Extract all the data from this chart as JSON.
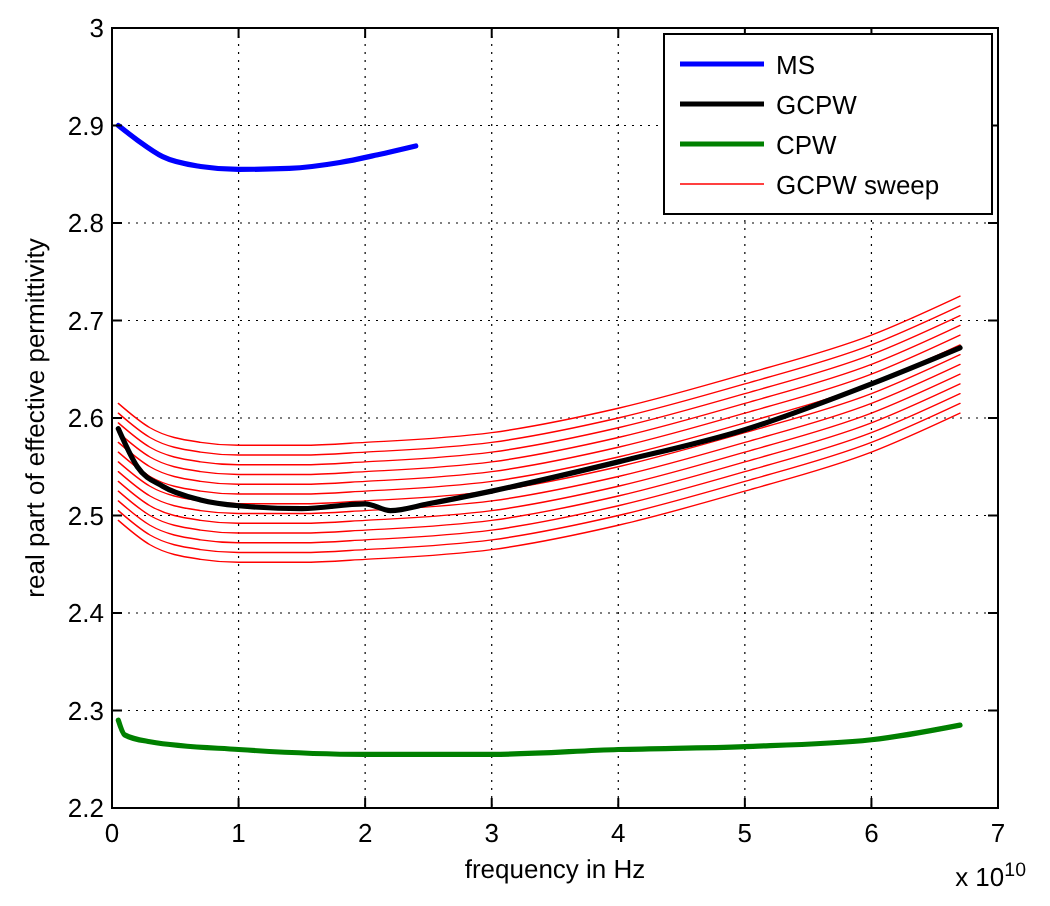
{
  "chart_data": {
    "type": "line",
    "xlabel": "frequency in Hz",
    "ylabel": "real part of effective permittivity",
    "annotations": [
      "x 10$^{10}$"
    ],
    "xlim": [
      0,
      7
    ],
    "xticks": [
      0,
      1,
      2,
      3,
      4,
      5,
      6,
      7
    ],
    "ylim": [
      2.2,
      3
    ],
    "yticks": [
      2.2,
      2.3,
      2.4,
      2.5,
      2.6,
      2.7,
      2.8,
      2.9,
      3
    ],
    "grid": true,
    "legend": "top right",
    "line_style": "solid",
    "marker": "none",
    "series": [
      {
        "name": "MS",
        "color": "#0000ff",
        "x": [
          0.05,
          0.2,
          0.4,
          0.7,
          1,
          1.4,
          1.8,
          2.1,
          2.4
        ],
        "values": [
          2.9,
          2.885,
          2.868,
          2.858,
          2.855,
          2.856,
          2.862,
          2.87,
          2.879
        ]
      },
      {
        "name": "GCPW",
        "color": "#000000",
        "x": [
          0.05,
          0.2,
          0.4,
          0.7,
          1,
          1.5,
          2,
          2.2,
          2.5,
          3,
          4,
          5,
          6,
          6.7
        ],
        "values": [
          2.589,
          2.55,
          2.53,
          2.516,
          2.51,
          2.507,
          2.512,
          2.505,
          2.512,
          2.525,
          2.555,
          2.588,
          2.635,
          2.672
        ]
      },
      {
        "name": "CPW",
        "color": "#008000",
        "x": [
          0.05,
          0.1,
          0.3,
          1,
          2,
          3,
          4,
          5,
          6,
          6.7
        ],
        "values": [
          2.29,
          2.275,
          2.268,
          2.26,
          2.255,
          2.255,
          2.26,
          2.263,
          2.27,
          2.285
        ]
      },
      {
        "name": "GCPW sweep",
        "color": "#ff0000",
        "x": [
          0.05,
          0.3,
          0.7,
          1,
          1.5,
          2,
          3,
          4,
          5,
          6,
          6.7
        ],
        "values": [
          2.495,
          2.47,
          2.455,
          2.452,
          2.452,
          2.455,
          2.465,
          2.49,
          2.525,
          2.565,
          2.605
        ]
      },
      {
        "color": "#ff0000",
        "x": [
          0.05,
          0.3,
          0.7,
          1,
          1.5,
          2,
          3,
          4,
          5,
          6,
          6.7
        ],
        "values": [
          2.505,
          2.48,
          2.465,
          2.462,
          2.462,
          2.465,
          2.475,
          2.5,
          2.535,
          2.575,
          2.615
        ]
      },
      {
        "color": "#ff0000",
        "x": [
          0.05,
          0.3,
          0.7,
          1,
          1.5,
          2,
          3,
          4,
          5,
          6,
          6.7
        ],
        "values": [
          2.515,
          2.49,
          2.475,
          2.472,
          2.472,
          2.475,
          2.485,
          2.51,
          2.545,
          2.585,
          2.625
        ]
      },
      {
        "color": "#ff0000",
        "x": [
          0.05,
          0.3,
          0.7,
          1,
          1.5,
          2,
          3,
          4,
          5,
          6,
          6.7
        ],
        "values": [
          2.525,
          2.5,
          2.485,
          2.482,
          2.482,
          2.485,
          2.495,
          2.52,
          2.555,
          2.595,
          2.635
        ]
      },
      {
        "color": "#ff0000",
        "x": [
          0.05,
          0.3,
          0.7,
          1,
          1.5,
          2,
          3,
          4,
          5,
          6,
          6.7
        ],
        "values": [
          2.535,
          2.51,
          2.495,
          2.492,
          2.492,
          2.495,
          2.505,
          2.53,
          2.565,
          2.605,
          2.645
        ]
      },
      {
        "color": "#ff0000",
        "x": [
          0.05,
          0.3,
          0.7,
          1,
          1.5,
          2,
          3,
          4,
          5,
          6,
          6.7
        ],
        "values": [
          2.545,
          2.52,
          2.505,
          2.502,
          2.502,
          2.505,
          2.515,
          2.54,
          2.575,
          2.615,
          2.655
        ]
      },
      {
        "color": "#ff0000",
        "x": [
          0.05,
          0.3,
          0.7,
          1,
          1.5,
          2,
          3,
          4,
          5,
          6,
          6.7
        ],
        "values": [
          2.555,
          2.53,
          2.515,
          2.512,
          2.512,
          2.515,
          2.525,
          2.55,
          2.585,
          2.625,
          2.665
        ]
      },
      {
        "color": "#ff0000",
        "x": [
          0.05,
          0.3,
          0.7,
          1,
          1.5,
          2,
          3,
          4,
          5,
          6,
          6.7
        ],
        "values": [
          2.565,
          2.54,
          2.525,
          2.522,
          2.522,
          2.525,
          2.535,
          2.56,
          2.595,
          2.635,
          2.675
        ]
      },
      {
        "color": "#ff0000",
        "x": [
          0.05,
          0.3,
          0.7,
          1,
          1.5,
          2,
          3,
          4,
          5,
          6,
          6.7
        ],
        "values": [
          2.575,
          2.55,
          2.535,
          2.532,
          2.532,
          2.535,
          2.545,
          2.57,
          2.605,
          2.645,
          2.685
        ]
      },
      {
        "color": "#ff0000",
        "x": [
          0.05,
          0.3,
          0.7,
          1,
          1.5,
          2,
          3,
          4,
          5,
          6,
          6.7
        ],
        "values": [
          2.585,
          2.56,
          2.545,
          2.542,
          2.542,
          2.545,
          2.555,
          2.58,
          2.615,
          2.655,
          2.695
        ]
      },
      {
        "color": "#ff0000",
        "x": [
          0.05,
          0.3,
          0.7,
          1,
          1.5,
          2,
          3,
          4,
          5,
          6,
          6.7
        ],
        "values": [
          2.595,
          2.57,
          2.555,
          2.552,
          2.552,
          2.555,
          2.565,
          2.59,
          2.625,
          2.665,
          2.705
        ]
      },
      {
        "color": "#ff0000",
        "x": [
          0.05,
          0.3,
          0.7,
          1,
          1.5,
          2,
          3,
          4,
          5,
          6,
          6.7
        ],
        "values": [
          2.605,
          2.58,
          2.565,
          2.562,
          2.562,
          2.565,
          2.575,
          2.6,
          2.635,
          2.675,
          2.715
        ]
      },
      {
        "color": "#ff0000",
        "x": [
          0.05,
          0.3,
          0.7,
          1,
          1.5,
          2,
          3,
          4,
          5,
          6,
          6.7
        ],
        "values": [
          2.615,
          2.59,
          2.575,
          2.572,
          2.572,
          2.575,
          2.585,
          2.61,
          2.645,
          2.685,
          2.725
        ]
      }
    ]
  }
}
